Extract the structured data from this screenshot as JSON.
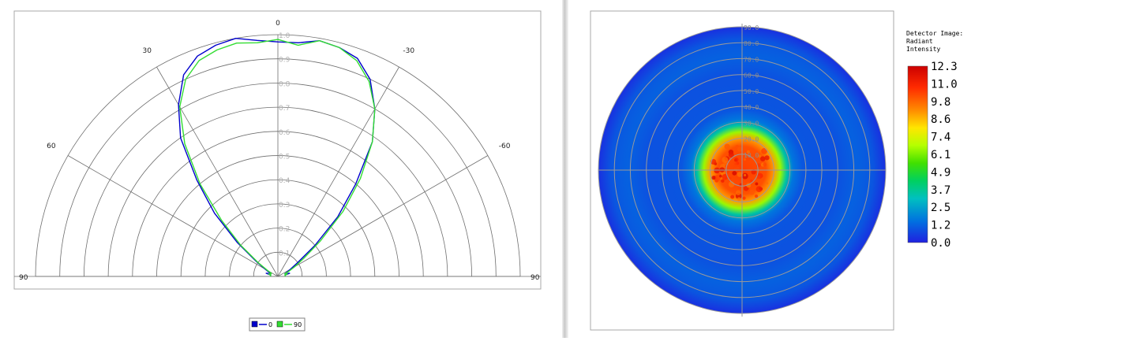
{
  "chart_data": [
    {
      "type": "polar-line",
      "title": "",
      "angle_range_deg": [
        -90,
        90
      ],
      "radial_range": [
        0,
        1.0
      ],
      "radial_ticks": [
        "0.1",
        "0.2",
        "0.3",
        "0.4",
        "0.5",
        "0.6",
        "0.7",
        "0.8",
        "0.9",
        "1.0"
      ],
      "angle_tick_labels": [
        {
          "angle": 0,
          "label": "0"
        },
        {
          "angle": 30,
          "label": "30"
        },
        {
          "angle": -30,
          "label": "-30"
        },
        {
          "angle": 60,
          "label": "60"
        },
        {
          "angle": -60,
          "label": "-60"
        },
        {
          "angle": 90,
          "label": "90"
        },
        {
          "angle": -90,
          "label": "90"
        }
      ],
      "legend_position": "bottom",
      "series": [
        {
          "name": "0",
          "color": "#0000cc",
          "points": [
            [
              -90,
              0.03
            ],
            [
              -80,
              0.03
            ],
            [
              -75,
              0.05
            ],
            [
              -70,
              0.03
            ],
            [
              -65,
              0.04
            ],
            [
              -60,
              0.06
            ],
            [
              -55,
              0.1
            ],
            [
              -50,
              0.2
            ],
            [
              -45,
              0.35
            ],
            [
              -40,
              0.5
            ],
            [
              -35,
              0.68
            ],
            [
              -30,
              0.8
            ],
            [
              -25,
              0.9
            ],
            [
              -20,
              0.96
            ],
            [
              -15,
              0.98
            ],
            [
              -10,
              0.99
            ],
            [
              -5,
              0.97
            ],
            [
              0,
              0.97
            ],
            [
              5,
              0.98
            ],
            [
              10,
              1.0
            ],
            [
              15,
              0.99
            ],
            [
              20,
              0.97
            ],
            [
              25,
              0.92
            ],
            [
              30,
              0.82
            ],
            [
              35,
              0.7
            ],
            [
              40,
              0.52
            ],
            [
              45,
              0.37
            ],
            [
              50,
              0.22
            ],
            [
              55,
              0.11
            ],
            [
              60,
              0.06
            ],
            [
              65,
              0.04
            ],
            [
              70,
              0.03
            ],
            [
              75,
              0.05
            ],
            [
              80,
              0.03
            ],
            [
              90,
              0.03
            ]
          ]
        },
        {
          "name": "90",
          "color": "#33dd33",
          "points": [
            [
              -90,
              0.03
            ],
            [
              -80,
              0.03
            ],
            [
              -75,
              0.04
            ],
            [
              -70,
              0.03
            ],
            [
              -65,
              0.05
            ],
            [
              -60,
              0.08
            ],
            [
              -55,
              0.13
            ],
            [
              -50,
              0.23
            ],
            [
              -45,
              0.38
            ],
            [
              -40,
              0.53
            ],
            [
              -35,
              0.68
            ],
            [
              -30,
              0.8
            ],
            [
              -25,
              0.89
            ],
            [
              -20,
              0.95
            ],
            [
              -15,
              0.98
            ],
            [
              -10,
              0.99
            ],
            [
              -5,
              0.96
            ],
            [
              0,
              0.98
            ],
            [
              5,
              0.97
            ],
            [
              10,
              0.98
            ],
            [
              15,
              0.97
            ],
            [
              20,
              0.95
            ],
            [
              25,
              0.9
            ],
            [
              30,
              0.81
            ],
            [
              35,
              0.67
            ],
            [
              40,
              0.5
            ],
            [
              45,
              0.33
            ],
            [
              50,
              0.2
            ],
            [
              55,
              0.1
            ],
            [
              60,
              0.05
            ],
            [
              65,
              0.03
            ],
            [
              70,
              0.03
            ],
            [
              75,
              0.04
            ],
            [
              80,
              0.03
            ],
            [
              90,
              0.03
            ]
          ]
        }
      ]
    },
    {
      "type": "heatmap",
      "title": "Detector Image:\nRadiant\nIntensity",
      "polar_ring_labels": [
        "10.0",
        "20.0",
        "30.0",
        "40.0",
        "50.0",
        "60.0",
        "70.0",
        "80.0",
        "90.0"
      ],
      "colorbar_labels": [
        "12.3",
        "11.0",
        "9.8",
        "8.6",
        "7.4",
        "6.1",
        "4.9",
        "3.7",
        "2.5",
        "1.2",
        "0.0"
      ],
      "colorbar_range": [
        0.0,
        12.3
      ],
      "radial_profile": [
        {
          "angle_deg": 0,
          "value": 10.5
        },
        {
          "angle_deg": 15,
          "value": 10.2
        },
        {
          "angle_deg": 20,
          "value": 9.0
        },
        {
          "angle_deg": 24,
          "value": 6.5
        },
        {
          "angle_deg": 28,
          "value": 3.5
        },
        {
          "angle_deg": 32,
          "value": 1.6
        },
        {
          "angle_deg": 38,
          "value": 1.0
        },
        {
          "angle_deg": 60,
          "value": 0.9
        },
        {
          "angle_deg": 72,
          "value": 1.2
        },
        {
          "angle_deg": 82,
          "value": 1.0
        },
        {
          "angle_deg": 90,
          "value": 0.3
        }
      ]
    }
  ]
}
